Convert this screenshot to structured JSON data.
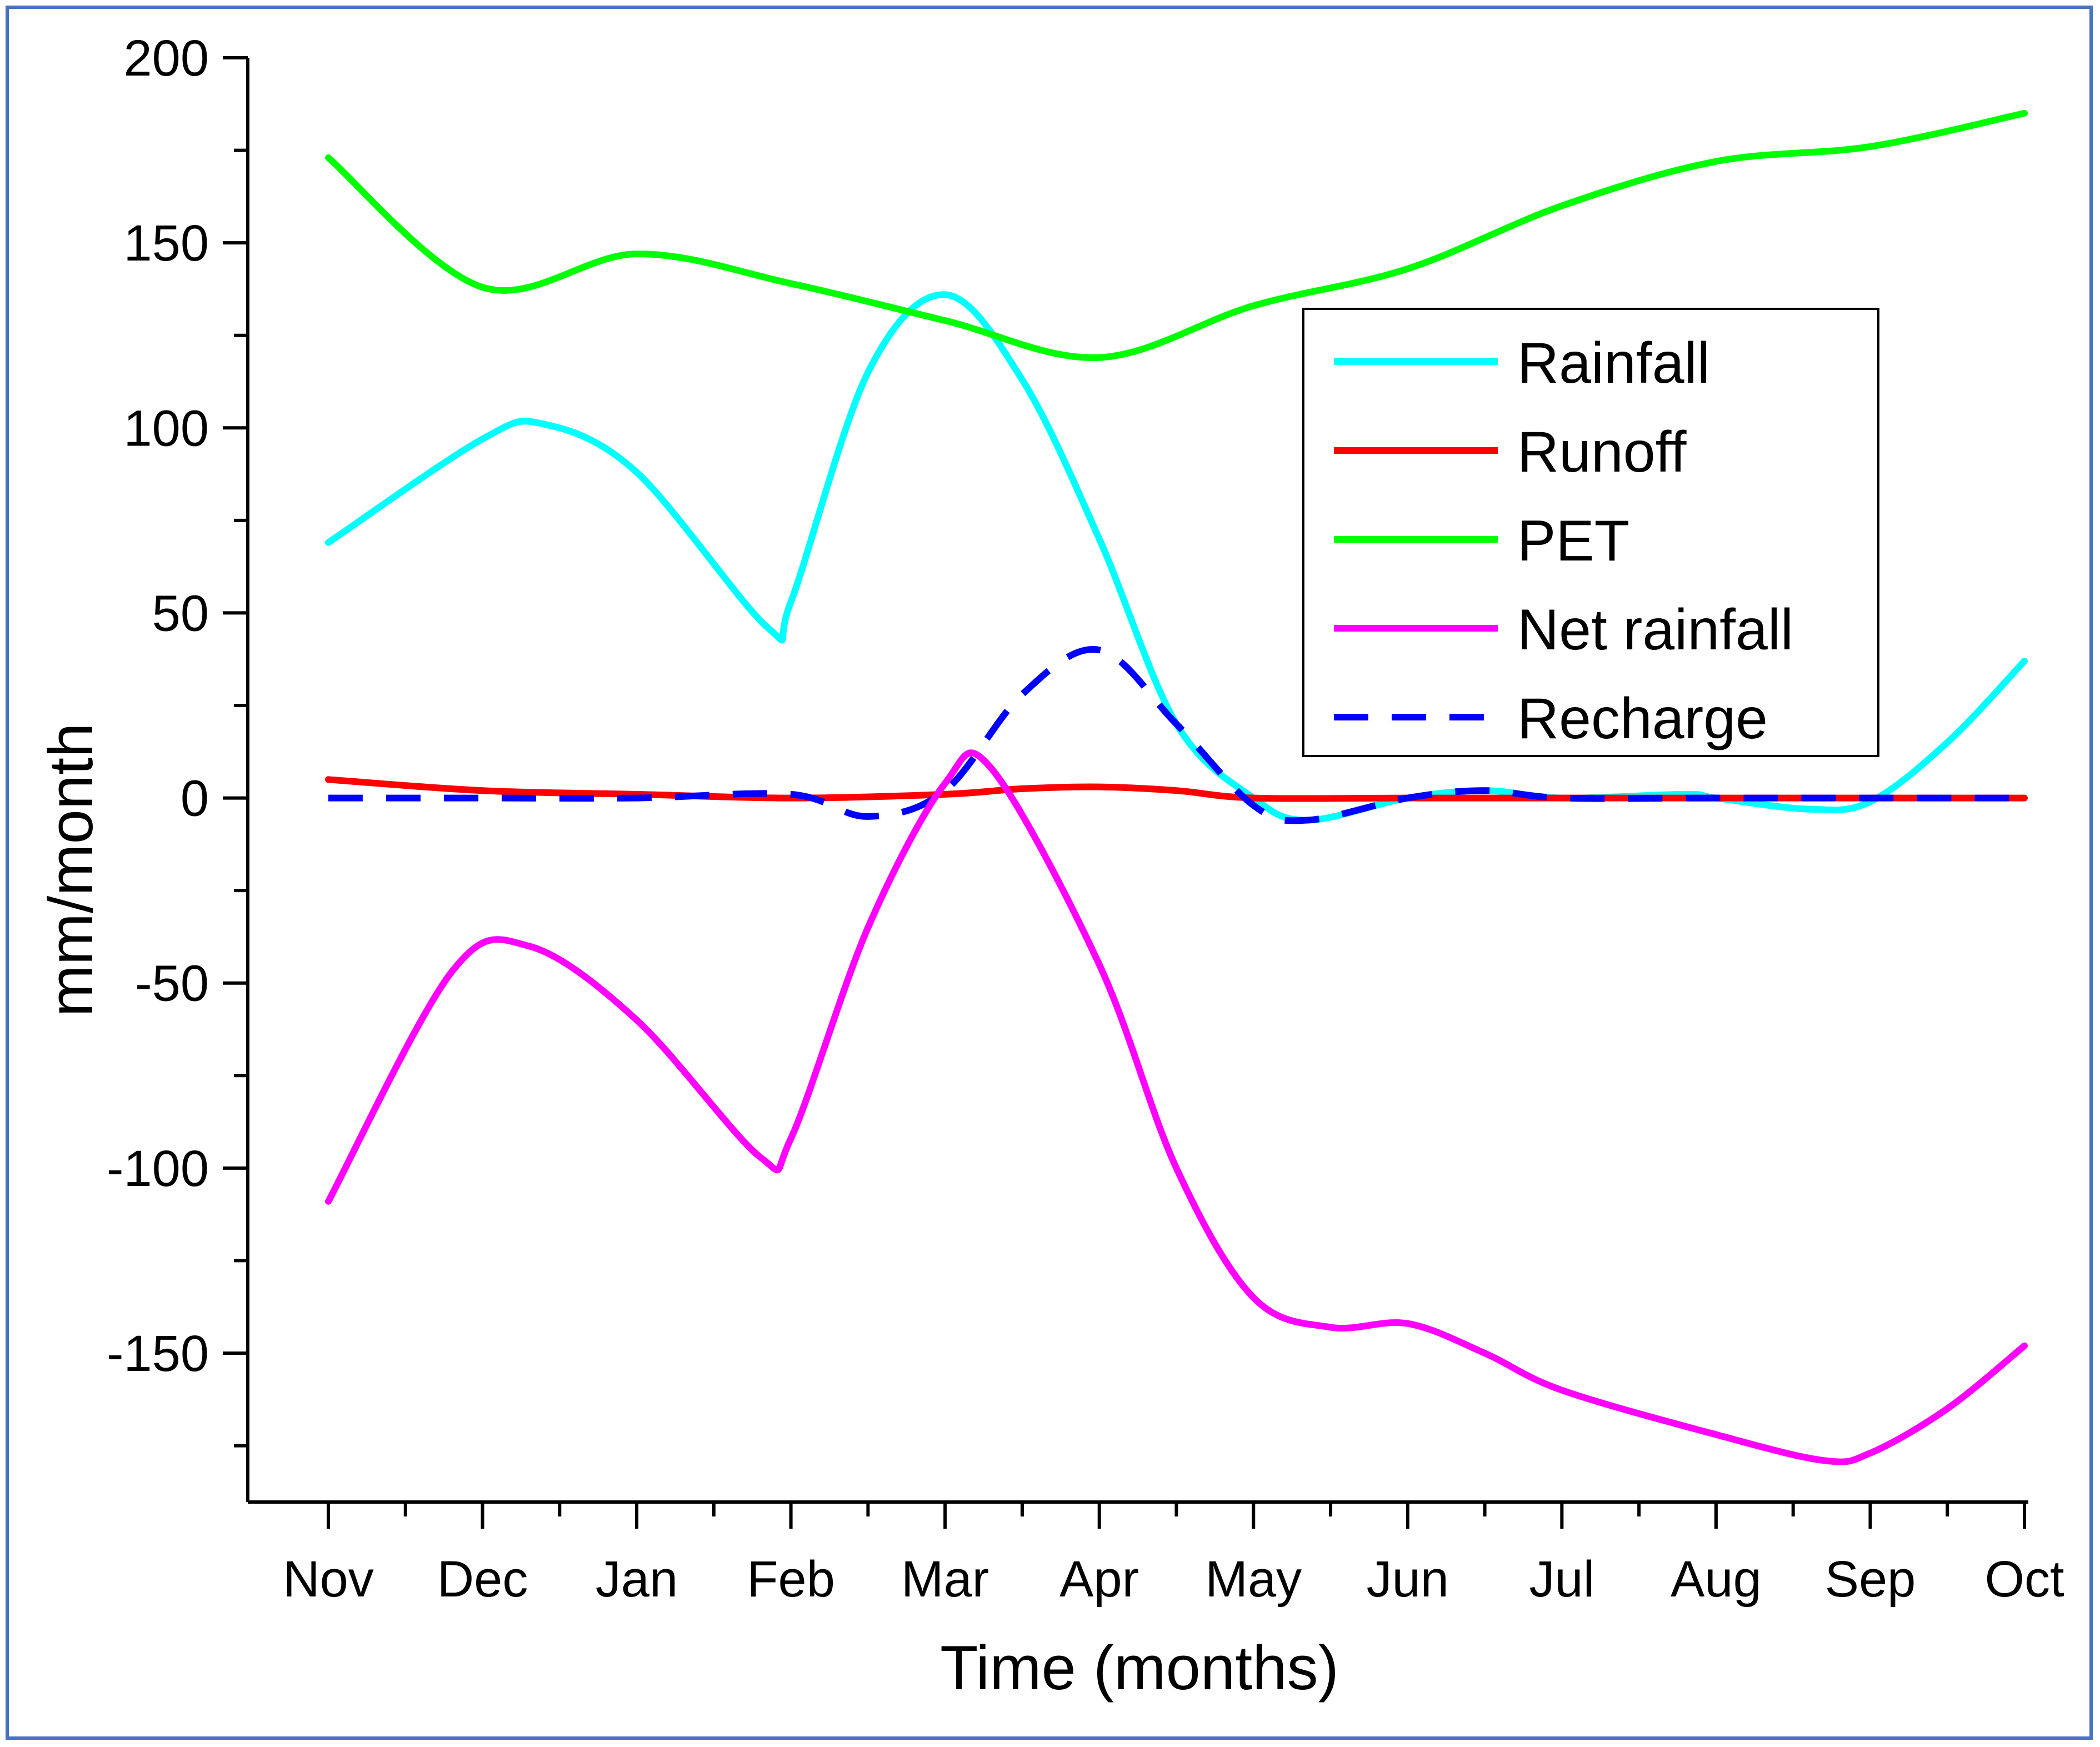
{
  "chart_data": {
    "type": "line",
    "title": "",
    "xlabel": "Time (months)",
    "ylabel": "mm/month",
    "ylim": [
      -180,
      200
    ],
    "yticks": [
      200,
      150,
      100,
      50,
      0,
      -50,
      -100,
      -150
    ],
    "categories": [
      "Nov",
      "Dec",
      "Jan",
      "Feb",
      "Mar",
      "Apr",
      "May",
      "Jun",
      "Jul",
      "Aug",
      "Sep",
      "Oct"
    ],
    "grid": false,
    "legend_position": "top-right",
    "series": [
      {
        "name": "Rainfall",
        "color": "#00ffff",
        "dash": false,
        "points": [
          [
            0,
            69
          ],
          [
            1,
            97
          ],
          [
            1.4,
            101
          ],
          [
            2,
            88
          ],
          [
            2.85,
            46
          ],
          [
            3,
            53
          ],
          [
            3.5,
            115
          ],
          [
            4,
            136
          ],
          [
            4.5,
            113
          ],
          [
            5,
            70
          ],
          [
            5.5,
            20
          ],
          [
            6,
            0
          ],
          [
            6.35,
            -6
          ],
          [
            7,
            0
          ],
          [
            7.5,
            2
          ],
          [
            8,
            0
          ],
          [
            8.8,
            1
          ],
          [
            9,
            0
          ],
          [
            9.6,
            -3
          ],
          [
            10,
            -1
          ],
          [
            10.5,
            15
          ],
          [
            11,
            37
          ]
        ]
      },
      {
        "name": "Runoff",
        "color": "#ff0000",
        "dash": false,
        "points": [
          [
            0,
            5
          ],
          [
            1,
            2
          ],
          [
            2,
            1
          ],
          [
            3,
            0
          ],
          [
            4,
            1
          ],
          [
            4.5,
            2.5
          ],
          [
            5,
            3
          ],
          [
            5.5,
            2
          ],
          [
            6,
            0
          ],
          [
            7,
            0
          ],
          [
            8,
            0
          ],
          [
            9,
            0
          ],
          [
            10,
            0
          ],
          [
            11,
            0
          ]
        ]
      },
      {
        "name": "PET",
        "color": "#00ff00",
        "dash": false,
        "points": [
          [
            0,
            173
          ],
          [
            1,
            138
          ],
          [
            2,
            147
          ],
          [
            3,
            139
          ],
          [
            4,
            129
          ],
          [
            5,
            119
          ],
          [
            6,
            133
          ],
          [
            7,
            143
          ],
          [
            8,
            160
          ],
          [
            9,
            172
          ],
          [
            10,
            176
          ],
          [
            11,
            185
          ]
        ]
      },
      {
        "name": "Net rainfall",
        "color": "#ff00ff",
        "dash": false,
        "points": [
          [
            0,
            -109
          ],
          [
            0.8,
            -47
          ],
          [
            1.3,
            -40
          ],
          [
            2,
            -60
          ],
          [
            2.8,
            -97
          ],
          [
            3,
            -92
          ],
          [
            3.5,
            -35
          ],
          [
            4,
            4
          ],
          [
            4.3,
            8
          ],
          [
            5,
            -45
          ],
          [
            5.5,
            -100
          ],
          [
            6,
            -135
          ],
          [
            6.5,
            -143
          ],
          [
            7,
            -142
          ],
          [
            7.5,
            -150
          ],
          [
            8,
            -160
          ],
          [
            9,
            -172
          ],
          [
            9.7,
            -179
          ],
          [
            10,
            -177
          ],
          [
            10.5,
            -165
          ],
          [
            11,
            -148
          ]
        ]
      },
      {
        "name": "Recharge",
        "color": "#0000ff",
        "dash": true,
        "points": [
          [
            0,
            0
          ],
          [
            1,
            0
          ],
          [
            2,
            0
          ],
          [
            3,
            1
          ],
          [
            3.5,
            -5
          ],
          [
            4,
            2
          ],
          [
            4.5,
            28
          ],
          [
            5,
            40
          ],
          [
            5.5,
            20
          ],
          [
            6,
            -2
          ],
          [
            6.35,
            -6
          ],
          [
            7,
            0
          ],
          [
            7.5,
            2
          ],
          [
            8,
            0
          ],
          [
            9,
            0
          ],
          [
            10,
            0
          ],
          [
            11,
            0
          ]
        ]
      }
    ]
  }
}
